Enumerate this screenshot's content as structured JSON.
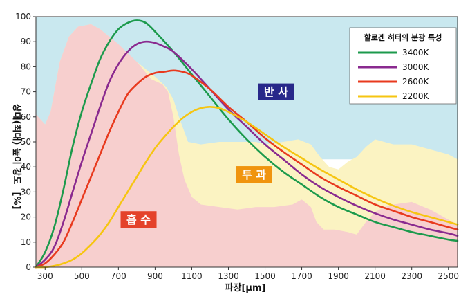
{
  "chart_data": {
    "type": "line",
    "title": "",
    "xlabel": "파장[μm]",
    "ylabel": "상대(최대) 높이 강도",
    "ylabel_tail": "[%]",
    "xlim": [
      250,
      2550
    ],
    "ylim": [
      0,
      100
    ],
    "x_ticks": [
      300,
      500,
      700,
      900,
      1100,
      1300,
      1500,
      1700,
      1900,
      2100,
      2300,
      2500
    ],
    "y_ticks": [
      0,
      10,
      20,
      30,
      40,
      50,
      60,
      70,
      80,
      90,
      100
    ],
    "grid": false,
    "legend": {
      "title": "할로겐 히터의 분광 특성",
      "placement": "top-right"
    },
    "regions": [
      {
        "label": "반 사",
        "color": "#c9e8ef",
        "label_bg": "#28288a",
        "label_x": 1560,
        "label_y": 70,
        "points": [
          [
            250,
            100
          ],
          [
            2550,
            100
          ],
          [
            2550,
            43
          ],
          [
            250,
            43
          ]
        ]
      },
      {
        "label": "투 과",
        "color": "#fbf3c2",
        "label_bg": "#f0940e",
        "label_x": 1440,
        "label_y": 37,
        "points": [
          [
            250,
            61
          ],
          [
            300,
            57
          ],
          [
            330,
            62
          ],
          [
            380,
            82
          ],
          [
            430,
            92
          ],
          [
            480,
            96
          ],
          [
            550,
            97
          ],
          [
            600,
            95
          ],
          [
            650,
            92
          ],
          [
            700,
            88
          ],
          [
            800,
            82
          ],
          [
            900,
            76
          ],
          [
            960,
            72
          ],
          [
            1000,
            67
          ],
          [
            1030,
            60
          ],
          [
            1080,
            50
          ],
          [
            1150,
            49
          ],
          [
            1250,
            50
          ],
          [
            1350,
            50
          ],
          [
            1450,
            50
          ],
          [
            1500,
            49
          ],
          [
            1600,
            50
          ],
          [
            1680,
            51
          ],
          [
            1750,
            49
          ],
          [
            1800,
            44
          ],
          [
            1850,
            40
          ],
          [
            1900,
            39
          ],
          [
            1950,
            42
          ],
          [
            2000,
            44
          ],
          [
            2050,
            48
          ],
          [
            2100,
            51
          ],
          [
            2150,
            50
          ],
          [
            2200,
            49
          ],
          [
            2300,
            49
          ],
          [
            2400,
            47
          ],
          [
            2500,
            45
          ],
          [
            2550,
            43
          ],
          [
            2550,
            0
          ],
          [
            250,
            0
          ]
        ]
      },
      {
        "label": "흡 수",
        "color": "#f7cfce",
        "label_bg": "#e4422a",
        "label_x": 810,
        "label_y": 19,
        "points": [
          [
            250,
            61
          ],
          [
            300,
            57
          ],
          [
            330,
            62
          ],
          [
            380,
            82
          ],
          [
            430,
            92
          ],
          [
            480,
            96
          ],
          [
            550,
            97
          ],
          [
            600,
            95
          ],
          [
            650,
            92
          ],
          [
            700,
            89
          ],
          [
            800,
            82
          ],
          [
            880,
            75
          ],
          [
            940,
            73
          ],
          [
            970,
            70
          ],
          [
            1000,
            60
          ],
          [
            1030,
            45
          ],
          [
            1060,
            35
          ],
          [
            1100,
            28
          ],
          [
            1150,
            25
          ],
          [
            1250,
            24
          ],
          [
            1350,
            23
          ],
          [
            1450,
            24
          ],
          [
            1550,
            24
          ],
          [
            1650,
            25
          ],
          [
            1700,
            27
          ],
          [
            1750,
            24
          ],
          [
            1780,
            18
          ],
          [
            1820,
            15
          ],
          [
            1880,
            15
          ],
          [
            1950,
            14
          ],
          [
            2000,
            13
          ],
          [
            2050,
            18
          ],
          [
            2100,
            22
          ],
          [
            2150,
            24
          ],
          [
            2200,
            25
          ],
          [
            2300,
            26
          ],
          [
            2400,
            23
          ],
          [
            2500,
            19
          ],
          [
            2550,
            17
          ],
          [
            2550,
            0
          ],
          [
            250,
            0
          ]
        ]
      }
    ],
    "series": [
      {
        "name": "3400K",
        "color": "#1c9a4c",
        "points": [
          [
            250,
            0
          ],
          [
            300,
            6
          ],
          [
            350,
            16
          ],
          [
            400,
            31
          ],
          [
            450,
            48
          ],
          [
            500,
            62
          ],
          [
            550,
            73
          ],
          [
            600,
            83
          ],
          [
            650,
            90
          ],
          [
            700,
            95
          ],
          [
            750,
            97.5
          ],
          [
            800,
            98.5
          ],
          [
            850,
            97.5
          ],
          [
            900,
            94
          ],
          [
            1000,
            86
          ],
          [
            1100,
            77
          ],
          [
            1200,
            68
          ],
          [
            1300,
            59
          ],
          [
            1400,
            51
          ],
          [
            1500,
            44
          ],
          [
            1600,
            38
          ],
          [
            1700,
            33
          ],
          [
            1800,
            28
          ],
          [
            1900,
            24
          ],
          [
            2000,
            21
          ],
          [
            2100,
            18
          ],
          [
            2200,
            16
          ],
          [
            2300,
            14
          ],
          [
            2400,
            12.5
          ],
          [
            2500,
            11
          ],
          [
            2550,
            10.5
          ]
        ]
      },
      {
        "name": "3000K",
        "color": "#8a2a8f",
        "points": [
          [
            250,
            0
          ],
          [
            300,
            3
          ],
          [
            350,
            8
          ],
          [
            400,
            18
          ],
          [
            450,
            30
          ],
          [
            500,
            42
          ],
          [
            550,
            53
          ],
          [
            600,
            64
          ],
          [
            650,
            74
          ],
          [
            700,
            81
          ],
          [
            750,
            86
          ],
          [
            800,
            89
          ],
          [
            850,
            90
          ],
          [
            900,
            89.5
          ],
          [
            950,
            88
          ],
          [
            1000,
            86
          ],
          [
            1100,
            79
          ],
          [
            1200,
            71
          ],
          [
            1300,
            63
          ],
          [
            1400,
            56
          ],
          [
            1500,
            49
          ],
          [
            1600,
            43
          ],
          [
            1700,
            37
          ],
          [
            1800,
            32
          ],
          [
            1900,
            28
          ],
          [
            2000,
            24.5
          ],
          [
            2100,
            21.5
          ],
          [
            2200,
            19
          ],
          [
            2300,
            17
          ],
          [
            2400,
            15
          ],
          [
            2500,
            13.5
          ],
          [
            2550,
            12.5
          ]
        ]
      },
      {
        "name": "2600K",
        "color": "#e83a1e",
        "points": [
          [
            250,
            0
          ],
          [
            300,
            1.5
          ],
          [
            350,
            5
          ],
          [
            400,
            10
          ],
          [
            450,
            18
          ],
          [
            500,
            27
          ],
          [
            550,
            36
          ],
          [
            600,
            45
          ],
          [
            650,
            54
          ],
          [
            700,
            62
          ],
          [
            750,
            69
          ],
          [
            800,
            73
          ],
          [
            850,
            76
          ],
          [
            900,
            77.5
          ],
          [
            950,
            78
          ],
          [
            1000,
            78.5
          ],
          [
            1050,
            78
          ],
          [
            1100,
            76.5
          ],
          [
            1200,
            71
          ],
          [
            1300,
            64
          ],
          [
            1400,
            58
          ],
          [
            1500,
            51.5
          ],
          [
            1600,
            46
          ],
          [
            1700,
            41
          ],
          [
            1800,
            36
          ],
          [
            1900,
            32
          ],
          [
            2000,
            28.5
          ],
          [
            2100,
            25
          ],
          [
            2200,
            22.5
          ],
          [
            2300,
            20
          ],
          [
            2400,
            18
          ],
          [
            2500,
            16
          ],
          [
            2550,
            15
          ]
        ]
      },
      {
        "name": "2200K",
        "color": "#f6c511",
        "points": [
          [
            250,
            0
          ],
          [
            300,
            0
          ],
          [
            350,
            0.5
          ],
          [
            400,
            1.5
          ],
          [
            450,
            3
          ],
          [
            500,
            5.5
          ],
          [
            550,
            9
          ],
          [
            600,
            13
          ],
          [
            650,
            18
          ],
          [
            700,
            24
          ],
          [
            750,
            30
          ],
          [
            800,
            36
          ],
          [
            850,
            42
          ],
          [
            900,
            47.5
          ],
          [
            950,
            52
          ],
          [
            1000,
            56
          ],
          [
            1050,
            59.5
          ],
          [
            1100,
            62
          ],
          [
            1150,
            63.5
          ],
          [
            1200,
            64
          ],
          [
            1250,
            63.5
          ],
          [
            1300,
            62
          ],
          [
            1400,
            58
          ],
          [
            1500,
            53
          ],
          [
            1600,
            48
          ],
          [
            1700,
            43.5
          ],
          [
            1800,
            39
          ],
          [
            1900,
            35
          ],
          [
            2000,
            31
          ],
          [
            2100,
            27.5
          ],
          [
            2200,
            24.5
          ],
          [
            2300,
            22
          ],
          [
            2400,
            20
          ],
          [
            2500,
            18
          ],
          [
            2550,
            17
          ]
        ]
      }
    ]
  }
}
